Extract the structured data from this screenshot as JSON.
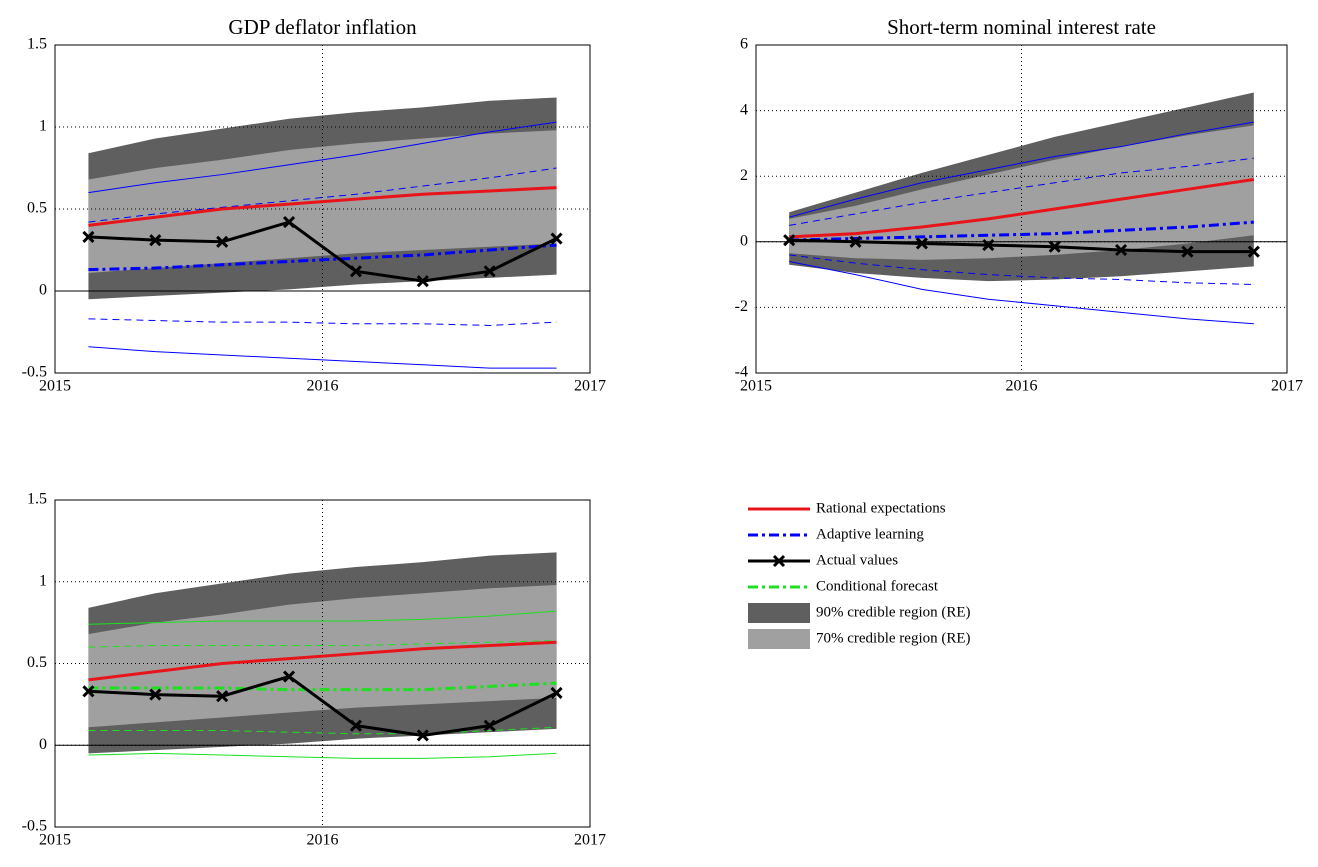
{
  "chart_data": [
    {
      "type": "line",
      "title": "GDP deflator inflation",
      "x": [
        2015.125,
        2015.375,
        2015.625,
        2015.875,
        2016.125,
        2016.375,
        2016.625,
        2016.875
      ],
      "xlim": [
        2015,
        2017
      ],
      "xticks": [
        2015,
        2016,
        2017
      ],
      "ylim": [
        -0.5,
        1.5
      ],
      "yticks": [
        -0.5,
        0,
        0.5,
        1,
        1.5
      ],
      "grid": true,
      "zero_line": true,
      "series": [
        {
          "name": "90% credible region (RE)",
          "kind": "band",
          "color": "#5f5f5f",
          "lower": [
            -0.05,
            -0.03,
            -0.01,
            0.01,
            0.04,
            0.06,
            0.08,
            0.1
          ],
          "upper": [
            0.84,
            0.93,
            0.99,
            1.05,
            1.09,
            1.12,
            1.16,
            1.18
          ]
        },
        {
          "name": "70% credible region (RE)",
          "kind": "band",
          "color": "#a0a0a0",
          "lower": [
            0.11,
            0.14,
            0.17,
            0.2,
            0.23,
            0.25,
            0.27,
            0.29
          ],
          "upper": [
            0.68,
            0.75,
            0.8,
            0.86,
            0.9,
            0.93,
            0.96,
            0.98
          ]
        },
        {
          "kind": "line",
          "color": "#0000ff",
          "dash": "solid",
          "width": 1,
          "values": [
            0.6,
            0.66,
            0.71,
            0.77,
            0.83,
            0.9,
            0.97,
            1.03
          ]
        },
        {
          "kind": "line",
          "color": "#0000ff",
          "dash": "dash",
          "width": 1,
          "values": [
            0.42,
            0.47,
            0.51,
            0.55,
            0.59,
            0.64,
            0.69,
            0.75
          ]
        },
        {
          "kind": "line",
          "color": "#0000ff",
          "dash": "dash",
          "width": 1,
          "values": [
            -0.17,
            -0.18,
            -0.19,
            -0.19,
            -0.2,
            -0.2,
            -0.21,
            -0.19
          ]
        },
        {
          "kind": "line",
          "color": "#0000ff",
          "dash": "solid",
          "width": 1,
          "values": [
            -0.34,
            -0.37,
            -0.39,
            -0.41,
            -0.43,
            -0.45,
            -0.47,
            -0.47
          ]
        },
        {
          "name": "Rational expectations",
          "kind": "line",
          "color": "#e8141a",
          "dash": "solid",
          "width": 3,
          "values": [
            0.4,
            0.45,
            0.5,
            0.53,
            0.56,
            0.59,
            0.61,
            0.63
          ]
        },
        {
          "name": "Adaptive learning",
          "kind": "line",
          "color": "#0000ff",
          "dash": "dashdot",
          "width": 3,
          "values": [
            0.13,
            0.14,
            0.16,
            0.18,
            0.2,
            0.22,
            0.25,
            0.28
          ]
        },
        {
          "name": "Actual values",
          "kind": "line",
          "color": "#000000",
          "dash": "solid",
          "width": 3,
          "marker": "x",
          "values": [
            0.33,
            0.31,
            0.3,
            0.42,
            0.12,
            0.06,
            0.12,
            0.32
          ]
        }
      ]
    },
    {
      "type": "line",
      "title": "Short-term nominal interest rate",
      "x": [
        2015.125,
        2015.375,
        2015.625,
        2015.875,
        2016.125,
        2016.375,
        2016.625,
        2016.875
      ],
      "xlim": [
        2015,
        2017
      ],
      "xticks": [
        2015,
        2016,
        2017
      ],
      "ylim": [
        -4,
        6
      ],
      "yticks": [
        -4,
        -2,
        0,
        2,
        4,
        6
      ],
      "grid": true,
      "zero_line": true,
      "series": [
        {
          "name": "90% credible region (RE)",
          "kind": "band",
          "color": "#5f5f5f",
          "lower": [
            -0.7,
            -0.95,
            -1.1,
            -1.2,
            -1.15,
            -1.05,
            -0.9,
            -0.75
          ],
          "upper": [
            0.9,
            1.5,
            2.1,
            2.65,
            3.2,
            3.65,
            4.1,
            4.55
          ]
        },
        {
          "name": "70% credible region (RE)",
          "kind": "band",
          "color": "#a0a0a0",
          "lower": [
            -0.35,
            -0.5,
            -0.55,
            -0.5,
            -0.4,
            -0.25,
            -0.05,
            0.2
          ],
          "upper": [
            0.7,
            1.1,
            1.6,
            2.05,
            2.5,
            2.9,
            3.25,
            3.55
          ]
        },
        {
          "kind": "line",
          "color": "#0000ff",
          "dash": "solid",
          "width": 1,
          "values": [
            0.75,
            1.3,
            1.8,
            2.2,
            2.6,
            2.9,
            3.3,
            3.65
          ]
        },
        {
          "kind": "line",
          "color": "#0000ff",
          "dash": "dash",
          "width": 1,
          "values": [
            0.5,
            0.85,
            1.2,
            1.5,
            1.8,
            2.1,
            2.3,
            2.55
          ]
        },
        {
          "kind": "line",
          "color": "#0000ff",
          "dash": "dash",
          "width": 1,
          "values": [
            -0.4,
            -0.65,
            -0.85,
            -1.0,
            -1.1,
            -1.15,
            -1.25,
            -1.3
          ]
        },
        {
          "kind": "line",
          "color": "#0000ff",
          "dash": "solid",
          "width": 1,
          "values": [
            -0.6,
            -1.0,
            -1.45,
            -1.75,
            -1.95,
            -2.15,
            -2.35,
            -2.5
          ]
        },
        {
          "name": "Rational expectations",
          "kind": "line",
          "color": "#e8141a",
          "dash": "solid",
          "width": 3,
          "values": [
            0.15,
            0.25,
            0.45,
            0.7,
            1.0,
            1.3,
            1.6,
            1.9
          ]
        },
        {
          "name": "Adaptive learning",
          "kind": "line",
          "color": "#0000ff",
          "dash": "dashdot",
          "width": 3,
          "values": [
            0.05,
            0.1,
            0.15,
            0.2,
            0.25,
            0.35,
            0.45,
            0.6
          ]
        },
        {
          "name": "Actual values",
          "kind": "line",
          "color": "#000000",
          "dash": "solid",
          "width": 3,
          "marker": "x",
          "values": [
            0.05,
            0.0,
            -0.05,
            -0.1,
            -0.15,
            -0.25,
            -0.3,
            -0.3
          ]
        }
      ]
    },
    {
      "type": "line",
      "x": [
        2015.125,
        2015.375,
        2015.625,
        2015.875,
        2016.125,
        2016.375,
        2016.625,
        2016.875
      ],
      "xlim": [
        2015,
        2017
      ],
      "xticks": [
        2015,
        2016,
        2017
      ],
      "ylim": [
        -0.5,
        1.5
      ],
      "yticks": [
        -0.5,
        0,
        0.5,
        1,
        1.5
      ],
      "grid": true,
      "zero_line": true,
      "series": [
        {
          "name": "90% credible region (RE)",
          "kind": "band",
          "color": "#5f5f5f",
          "lower": [
            -0.05,
            -0.03,
            -0.01,
            0.01,
            0.04,
            0.06,
            0.08,
            0.1
          ],
          "upper": [
            0.84,
            0.93,
            0.99,
            1.05,
            1.09,
            1.12,
            1.16,
            1.18
          ]
        },
        {
          "name": "70% credible region (RE)",
          "kind": "band",
          "color": "#a0a0a0",
          "lower": [
            0.11,
            0.14,
            0.17,
            0.2,
            0.23,
            0.25,
            0.27,
            0.29
          ],
          "upper": [
            0.68,
            0.75,
            0.8,
            0.86,
            0.9,
            0.93,
            0.96,
            0.98
          ]
        },
        {
          "kind": "line",
          "color": "#1ee01e",
          "dash": "solid",
          "width": 1,
          "values": [
            0.74,
            0.75,
            0.76,
            0.76,
            0.76,
            0.77,
            0.79,
            0.82
          ]
        },
        {
          "kind": "line",
          "color": "#1ee01e",
          "dash": "dash",
          "width": 1,
          "values": [
            0.6,
            0.61,
            0.61,
            0.61,
            0.61,
            0.62,
            0.63,
            0.64
          ]
        },
        {
          "kind": "line",
          "color": "#1ee01e",
          "dash": "dash",
          "width": 1,
          "values": [
            0.09,
            0.09,
            0.09,
            0.08,
            0.07,
            0.07,
            0.09,
            0.11
          ]
        },
        {
          "kind": "line",
          "color": "#1ee01e",
          "dash": "solid",
          "width": 1,
          "values": [
            -0.06,
            -0.05,
            -0.06,
            -0.07,
            -0.08,
            -0.08,
            -0.07,
            -0.05
          ]
        },
        {
          "name": "Rational expectations",
          "kind": "line",
          "color": "#e8141a",
          "dash": "solid",
          "width": 3,
          "values": [
            0.4,
            0.45,
            0.5,
            0.53,
            0.56,
            0.59,
            0.61,
            0.63
          ]
        },
        {
          "name": "Conditional forecast",
          "kind": "line",
          "color": "#1ee01e",
          "dash": "dashdot",
          "width": 3,
          "values": [
            0.35,
            0.35,
            0.35,
            0.34,
            0.34,
            0.34,
            0.36,
            0.38
          ]
        },
        {
          "name": "Actual values",
          "kind": "line",
          "color": "#000000",
          "dash": "solid",
          "width": 3,
          "marker": "x",
          "values": [
            0.33,
            0.31,
            0.3,
            0.42,
            0.12,
            0.06,
            0.12,
            0.32
          ]
        }
      ]
    }
  ]
}
